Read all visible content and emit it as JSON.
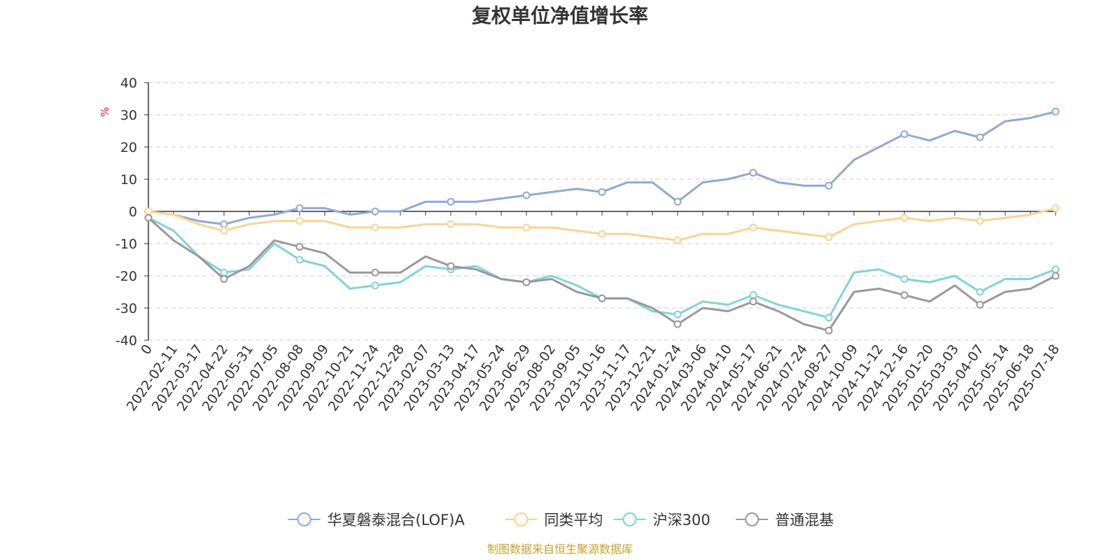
{
  "chart_data": {
    "type": "line",
    "title": "复权单位净值增长率",
    "ylabel": "%",
    "ylim": [
      -40,
      40
    ],
    "yticks": [
      40,
      30,
      20,
      10,
      0,
      -10,
      -20,
      -30,
      -40
    ],
    "grid": true,
    "legend_position": "bottom",
    "x": [
      "0",
      "2022-02-11",
      "2022-03-17",
      "2022-04-22",
      "2022-05-31",
      "2022-07-05",
      "2022-08-08",
      "2022-09-09",
      "2022-10-21",
      "2022-11-24",
      "2022-12-28",
      "2023-02-07",
      "2023-03-13",
      "2023-04-17",
      "2023-05-24",
      "2023-06-29",
      "2023-08-02",
      "2023-09-05",
      "2023-10-16",
      "2023-11-17",
      "2023-12-21",
      "2024-01-24",
      "2024-03-06",
      "2024-04-10",
      "2024-05-17",
      "2024-06-21",
      "2024-07-24",
      "2024-08-27",
      "2024-10-09",
      "2024-11-12",
      "2024-12-16",
      "2025-01-20",
      "2025-03-03",
      "2025-04-07",
      "2025-05-14",
      "2025-06-18",
      "2025-07-18"
    ],
    "series": [
      {
        "name": "华夏磐泰混合(LOF)A",
        "color": "#8ea9d8",
        "values": [
          0,
          -1,
          -3,
          -4,
          -2,
          -1,
          1,
          1,
          -1,
          0,
          0,
          3,
          3,
          3,
          4,
          5,
          6,
          7,
          6,
          9,
          9,
          3,
          9,
          10,
          12,
          9,
          8,
          8,
          16,
          20,
          24,
          22,
          25,
          23,
          28,
          29,
          31
        ]
      },
      {
        "name": "同类平均",
        "color": "#fdd38f",
        "values": [
          0,
          -1,
          -4,
          -6,
          -4,
          -3,
          -3,
          -3,
          -5,
          -5,
          -5,
          -4,
          -4,
          -4,
          -5,
          -5,
          -5,
          -6,
          -7,
          -7,
          -8,
          -9,
          -7,
          -7,
          -5,
          -6,
          -7,
          -8,
          -4,
          -3,
          -2,
          -3,
          -2,
          -3,
          -2,
          -1,
          1
        ]
      },
      {
        "name": "沪深300",
        "color": "#7fd4d8",
        "values": [
          -2,
          -6,
          -14,
          -19,
          -18,
          -10,
          -15,
          -17,
          -24,
          -23,
          -22,
          -17,
          -18,
          -17,
          -21,
          -22,
          -20,
          -23,
          -27,
          -27,
          -31,
          -32,
          -28,
          -29,
          -26,
          -29,
          -31,
          -33,
          -19,
          -18,
          -21,
          -22,
          -20,
          -25,
          -21,
          -21,
          -18
        ]
      },
      {
        "name": "普通混基",
        "color": "#999999",
        "values": [
          -2,
          -9,
          -14,
          -21,
          -17,
          -9,
          -11,
          -13,
          -19,
          -19,
          -19,
          -14,
          -17,
          -18,
          -21,
          -22,
          -21,
          -25,
          -27,
          -27,
          -30,
          -35,
          -30,
          -31,
          -28,
          -31,
          -35,
          -37,
          -25,
          -24,
          -26,
          -28,
          -23,
          -29,
          -25,
          -24,
          -20
        ]
      }
    ]
  },
  "source_note": "制图数据来自恒生聚源数据库",
  "colors": {
    "unit_label": "#e02020",
    "axis": "#333333",
    "grid": "#cccccc",
    "source": "#c9a227"
  }
}
